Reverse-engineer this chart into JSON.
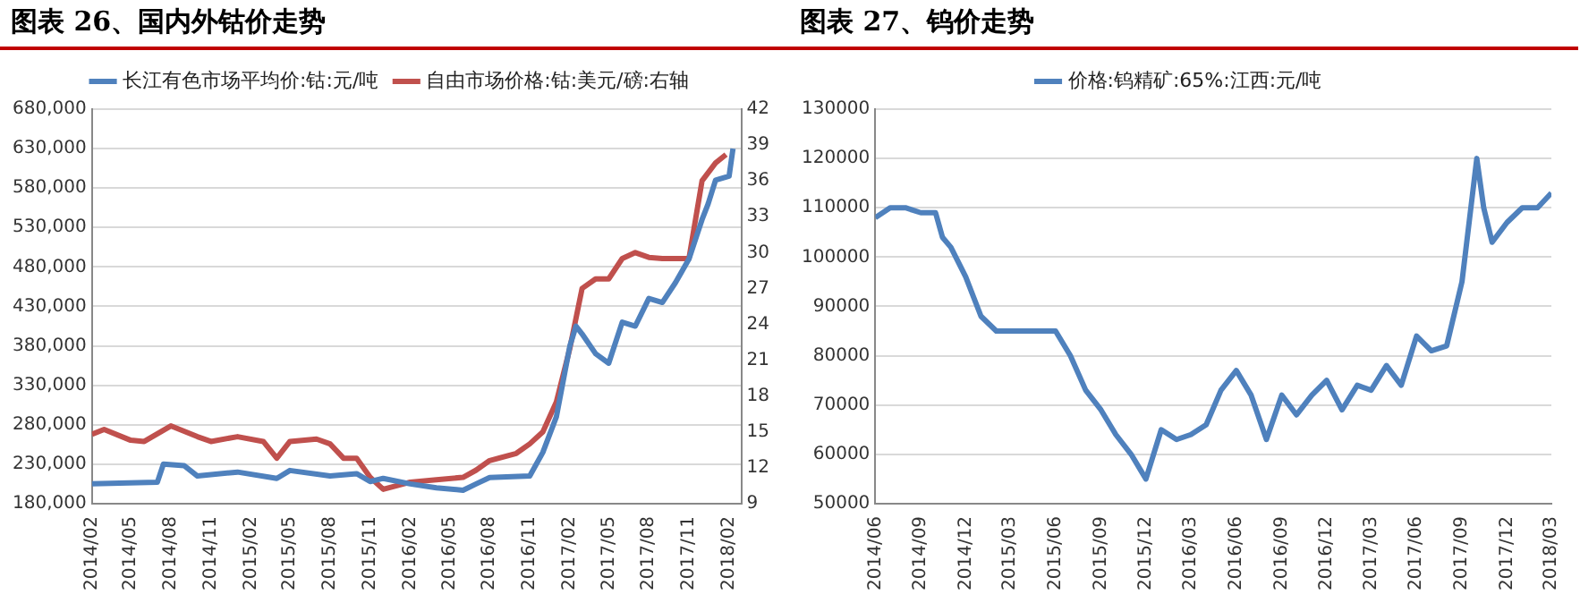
{
  "chart_data": [
    {
      "type": "line",
      "title": "图表 26、国内外钴价走势",
      "legend": "top",
      "grid": "y",
      "marker": "none",
      "line_style": "solid",
      "xlim": [
        "2014-02",
        "2018-03"
      ],
      "xticks": [
        {
          "value": "2014-02",
          "label": "2014/02"
        },
        {
          "value": "2014-05",
          "label": "2014/05"
        },
        {
          "value": "2014-08",
          "label": "2014/08"
        },
        {
          "value": "2014-11",
          "label": "2014/11"
        },
        {
          "value": "2015-02",
          "label": "2015/02"
        },
        {
          "value": "2015-05",
          "label": "2015/05"
        },
        {
          "value": "2015-08",
          "label": "2015/08"
        },
        {
          "value": "2015-11",
          "label": "2015/11"
        },
        {
          "value": "2016-02",
          "label": "2016/02"
        },
        {
          "value": "2016-05",
          "label": "2016/05"
        },
        {
          "value": "2016-08",
          "label": "2016/08"
        },
        {
          "value": "2016-11",
          "label": "2016/11"
        },
        {
          "value": "2017-02",
          "label": "2017/02"
        },
        {
          "value": "2017-05",
          "label": "2017/05"
        },
        {
          "value": "2017-08",
          "label": "2017/08"
        },
        {
          "value": "2017-11",
          "label": "2017/11"
        },
        {
          "value": "2018-02",
          "label": "2018/02"
        }
      ],
      "ylim": [
        180000,
        680000
      ],
      "yticks": [
        {
          "value": 180000,
          "label": "180,000"
        },
        {
          "value": 230000,
          "label": "230,000"
        },
        {
          "value": 280000,
          "label": "280,000"
        },
        {
          "value": 330000,
          "label": "330,000"
        },
        {
          "value": 380000,
          "label": "380,000"
        },
        {
          "value": 430000,
          "label": "430,000"
        },
        {
          "value": 480000,
          "label": "480,000"
        },
        {
          "value": 530000,
          "label": "530,000"
        },
        {
          "value": 580000,
          "label": "580,000"
        },
        {
          "value": 630000,
          "label": "630,000"
        },
        {
          "value": 680000,
          "label": "680,000"
        }
      ],
      "y2lim": [
        9,
        42
      ],
      "y2ticks": [
        9,
        12,
        15,
        18,
        21,
        24,
        27,
        30,
        33,
        36,
        39,
        42
      ],
      "series": [
        {
          "name": "长江有色市场平均价:钴:元/吨",
          "color": "#4f81bd",
          "x": [
            "2014-02-01",
            "2014-07-01",
            "2014-07-15",
            "2014-09-01",
            "2014-10-01",
            "2015-01-01",
            "2015-04-01",
            "2015-05-01",
            "2015-08-01",
            "2015-10-01",
            "2015-11-01",
            "2015-12-01",
            "2016-02-01",
            "2016-04-01",
            "2016-06-01",
            "2016-07-01",
            "2016-08-01",
            "2016-11-01",
            "2016-12-01",
            "2017-01-01",
            "2017-02-01",
            "2017-02-15",
            "2017-03-01",
            "2017-04-01",
            "2017-05-01",
            "2017-06-01",
            "2017-07-01",
            "2017-08-01",
            "2017-09-01",
            "2017-10-01",
            "2017-11-01",
            "2017-12-01",
            "2017-12-15",
            "2018-01-01",
            "2018-02-01",
            "2018-02-10"
          ],
          "values": [
            205000,
            207000,
            230000,
            228000,
            215000,
            220000,
            212000,
            222000,
            215000,
            218000,
            208000,
            212000,
            205000,
            200000,
            197000,
            205000,
            213000,
            215000,
            245000,
            290000,
            380000,
            405000,
            395000,
            370000,
            358000,
            410000,
            405000,
            440000,
            435000,
            460000,
            490000,
            540000,
            560000,
            590000,
            595000,
            630000
          ]
        },
        {
          "name": "自由市场价格:钴:美元/磅:右轴",
          "color": "#c0504d",
          "axis": "y2",
          "x": [
            "2014-02-01",
            "2014-03-01",
            "2014-05-01",
            "2014-06-01",
            "2014-08-01",
            "2014-10-01",
            "2014-11-01",
            "2015-01-01",
            "2015-03-01",
            "2015-04-01",
            "2015-05-01",
            "2015-07-01",
            "2015-08-01",
            "2015-09-01",
            "2015-10-01",
            "2015-11-01",
            "2015-12-01",
            "2016-02-01",
            "2016-04-01",
            "2016-06-01",
            "2016-07-01",
            "2016-08-01",
            "2016-10-01",
            "2016-11-01",
            "2016-12-01",
            "2017-01-01",
            "2017-02-01",
            "2017-03-01",
            "2017-04-01",
            "2017-05-01",
            "2017-06-01",
            "2017-07-01",
            "2017-08-01",
            "2017-09-01",
            "2017-11-01",
            "2017-12-01",
            "2018-01-01",
            "2018-01-25"
          ],
          "values": [
            14.8,
            15.2,
            14.3,
            14.2,
            15.5,
            14.6,
            14.2,
            14.6,
            14.2,
            12.8,
            14.2,
            14.4,
            14,
            12.8,
            12.8,
            11.2,
            10.2,
            10.8,
            11,
            11.2,
            11.8,
            12.6,
            13.2,
            14,
            15,
            17.5,
            22,
            27,
            27.8,
            27.8,
            29.5,
            30,
            29.6,
            29.5,
            29.5,
            36,
            37.5,
            38.2
          ]
        }
      ]
    },
    {
      "type": "line",
      "title": "图表 27、钨价走势",
      "legend": "top",
      "grid": "y",
      "marker": "none",
      "line_style": "solid",
      "xlim": [
        "2014-06",
        "2018-03"
      ],
      "xticks": [
        {
          "value": "2014-06",
          "label": "2014/06"
        },
        {
          "value": "2014-09",
          "label": "2014/09"
        },
        {
          "value": "2014-12",
          "label": "2014/12"
        },
        {
          "value": "2015-03",
          "label": "2015/03"
        },
        {
          "value": "2015-06",
          "label": "2015/06"
        },
        {
          "value": "2015-09",
          "label": "2015/09"
        },
        {
          "value": "2015-12",
          "label": "2015/12"
        },
        {
          "value": "2016-03",
          "label": "2016/03"
        },
        {
          "value": "2016-06",
          "label": "2016/06"
        },
        {
          "value": "2016-09",
          "label": "2016/09"
        },
        {
          "value": "2016-12",
          "label": "2016/12"
        },
        {
          "value": "2017-03",
          "label": "2017/03"
        },
        {
          "value": "2017-06",
          "label": "2017/06"
        },
        {
          "value": "2017-09",
          "label": "2017/09"
        },
        {
          "value": "2017-12",
          "label": "2017/12"
        },
        {
          "value": "2018-03",
          "label": "2018/03"
        }
      ],
      "ylim": [
        50000,
        130000
      ],
      "yticks": [
        50000,
        60000,
        70000,
        80000,
        90000,
        100000,
        110000,
        120000,
        130000
      ],
      "series": [
        {
          "name": "价格:钨精矿:65%:江西:元/吨",
          "color": "#4f81bd",
          "x": [
            "2014-06-01",
            "2014-07-01",
            "2014-08-01",
            "2014-09-01",
            "2014-10-01",
            "2014-10-15",
            "2014-11-01",
            "2014-12-01",
            "2015-01-01",
            "2015-02-01",
            "2015-03-01",
            "2015-06-01",
            "2015-07-01",
            "2015-08-01",
            "2015-09-01",
            "2015-10-01",
            "2015-11-01",
            "2015-12-01",
            "2016-01-01",
            "2016-02-01",
            "2016-03-01",
            "2016-04-01",
            "2016-05-01",
            "2016-06-01",
            "2016-07-01",
            "2016-08-01",
            "2016-09-01",
            "2016-10-01",
            "2016-11-01",
            "2016-12-01",
            "2017-01-01",
            "2017-02-01",
            "2017-03-01",
            "2017-04-01",
            "2017-05-01",
            "2017-06-01",
            "2017-07-01",
            "2017-08-01",
            "2017-09-01",
            "2017-10-01",
            "2017-10-15",
            "2017-11-01",
            "2017-12-01",
            "2018-01-01",
            "2018-02-01",
            "2018-03-01"
          ],
          "values": [
            108000,
            110000,
            110000,
            109000,
            109000,
            104000,
            102000,
            96000,
            88000,
            85000,
            85000,
            85000,
            80000,
            73000,
            69000,
            64000,
            60000,
            55000,
            65000,
            63000,
            64000,
            66000,
            73000,
            77000,
            72000,
            63000,
            72000,
            68000,
            72000,
            75000,
            69000,
            74000,
            73000,
            78000,
            74000,
            84000,
            81000,
            82000,
            95000,
            120000,
            110000,
            103000,
            107000,
            110000,
            110000,
            113000
          ]
        }
      ]
    }
  ]
}
